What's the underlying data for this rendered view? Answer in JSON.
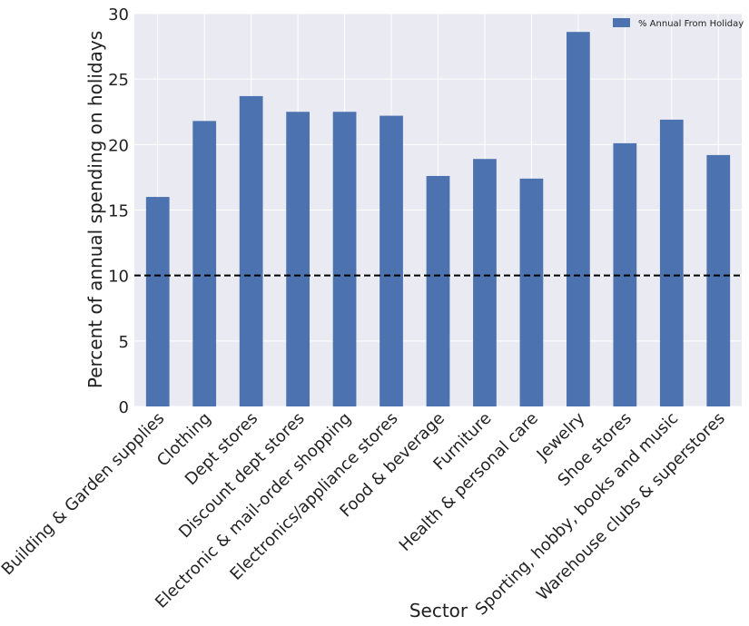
{
  "chart_data": {
    "type": "bar",
    "title": "",
    "xlabel": "Sector",
    "ylabel": "Percent of annual spending on holidays",
    "categories": [
      "Building & Garden supplies",
      "Clothing",
      "Dept stores",
      "Discount dept stores",
      "Electronic & mail-order shopping",
      "Electronics/appliance stores",
      "Food & beverage",
      "Furniture",
      "Health & personal care",
      "Jewelry",
      "Shoe stores",
      "Sporting, hobby, books and music",
      "Warehouse clubs & superstores"
    ],
    "series": [
      {
        "name": "% Annual From Holiday",
        "color": "#4C72B0",
        "values": [
          16.0,
          21.8,
          23.7,
          22.5,
          22.5,
          22.2,
          17.6,
          18.9,
          17.4,
          28.6,
          20.1,
          21.9,
          19.2
        ]
      }
    ],
    "ylim": [
      0,
      30
    ],
    "yticks": [
      0,
      5,
      10,
      15,
      20,
      25,
      30
    ],
    "reference_line": {
      "value": 10,
      "style": "dashed",
      "color": "#000000"
    },
    "grid": true,
    "legend_position": "top-right",
    "background_color": "#EAEAF2"
  }
}
